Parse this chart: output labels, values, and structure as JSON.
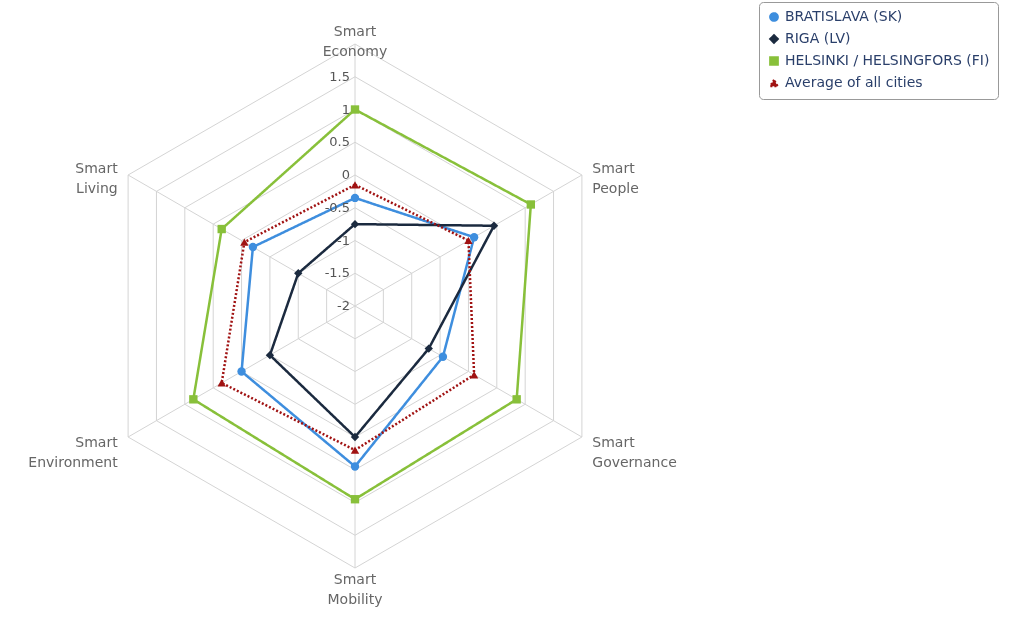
{
  "chart_data": {
    "type": "radar",
    "categories": [
      "Smart Economy",
      "Smart People",
      "Smart Governance",
      "Smart Mobility",
      "Smart Environment",
      "Smart Living"
    ],
    "ylim": [
      -2,
      2
    ],
    "yticks": [
      -2,
      -1.5,
      -1,
      -0.5,
      0,
      0.5,
      1,
      1.5
    ],
    "grid": true,
    "legend": "top right",
    "series": [
      {
        "name": "BRATISLAVA (SK)",
        "color": "#3e8ede",
        "marker": "circle",
        "line_style": "solid",
        "values": [
          -0.35,
          0.1,
          -0.45,
          0.45,
          0,
          -0.2
        ]
      },
      {
        "name": "RIGA (LV)",
        "color": "#1b2a3f",
        "marker": "diamond",
        "line_style": "solid",
        "values": [
          -0.75,
          0.45,
          -0.7,
          0,
          -0.5,
          -1
        ]
      },
      {
        "name": "HELSINKI / HELSINGFORS (FI)",
        "color": "#88c03a",
        "marker": "square",
        "line_style": "solid",
        "values": [
          1,
          1.1,
          0.85,
          0.95,
          0.85,
          0.35
        ]
      },
      {
        "name": "Average of all cities",
        "color": "#a01212",
        "marker": "triangle",
        "line_style": "dotted",
        "values": [
          -0.15,
          0,
          0.1,
          0.2,
          0.35,
          -0.05
        ]
      }
    ]
  }
}
